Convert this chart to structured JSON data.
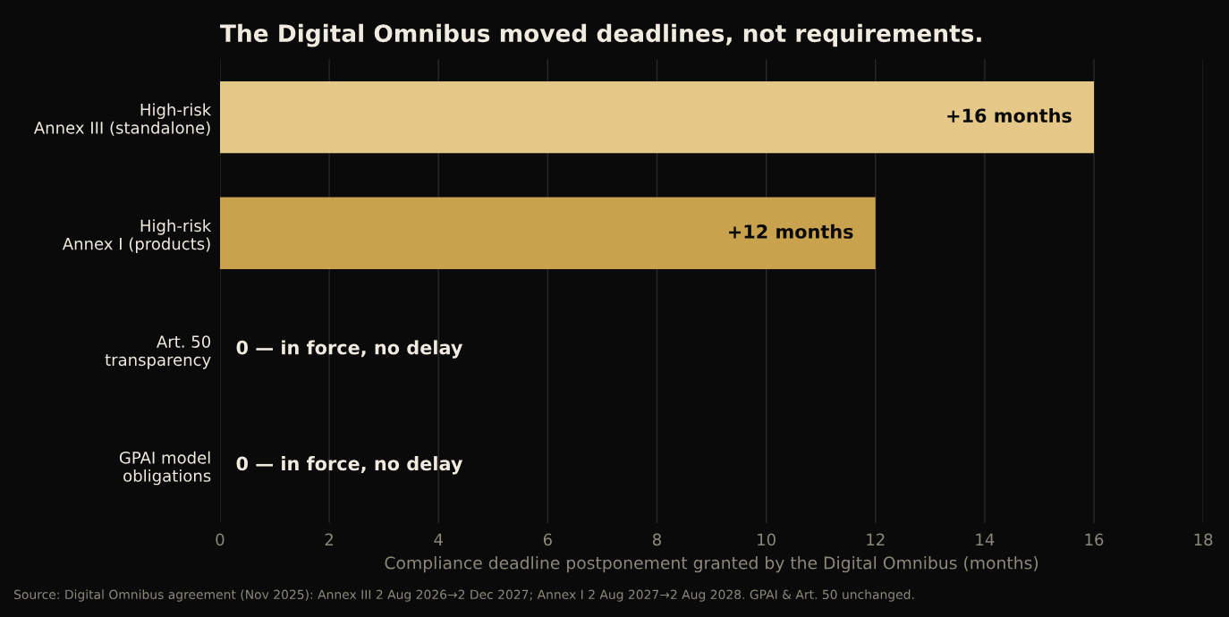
{
  "chart_data": {
    "type": "bar",
    "orientation": "horizontal",
    "title": "The Digital Omnibus moved deadlines, not requirements.",
    "xlabel": "Compliance deadline postponement granted by the Digital Omnibus (months)",
    "categories": [
      "High-risk\nAnnex III (standalone)",
      "High-risk\nAnnex I (products)",
      "Art. 50\ntransparency",
      "GPAI model\nobligations"
    ],
    "values": [
      16,
      12,
      0,
      0
    ],
    "colors": [
      "#e5c888",
      "#c9a24e",
      "#c9a24e",
      "#c9a24e"
    ],
    "value_labels": [
      "+16 months",
      "+12 months",
      "0 — in force, no delay",
      "0 — in force, no delay"
    ],
    "xlim": [
      0,
      18
    ],
    "xticks": [
      0,
      2,
      4,
      6,
      8,
      10,
      12,
      14,
      16,
      18
    ],
    "grid": "x",
    "legend": false,
    "annotations": [
      "Source: Digital Omnibus agreement (Nov 2025): Annex III 2 Aug 2026→2 Dec 2027; Annex I 2 Aug 2027→2 Aug 2028. GPAI & Art. 50 unchanged."
    ]
  }
}
